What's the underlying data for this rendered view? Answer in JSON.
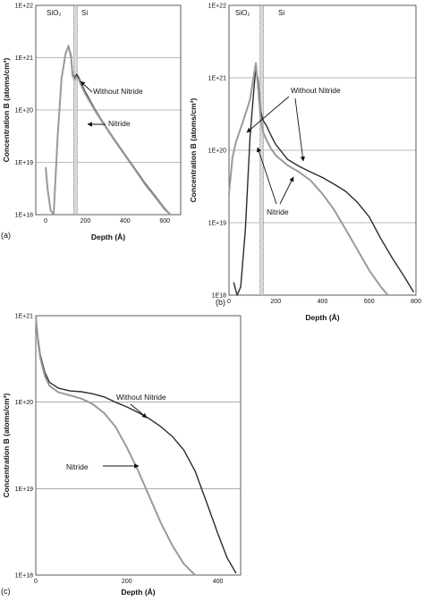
{
  "panel_labels": {
    "a": "(a)",
    "b": "(b)",
    "c": "(c)"
  },
  "colors": {
    "without_nitride": "#2b2b2b",
    "nitride": "#9a9a9a",
    "grid": "#777777",
    "frame": "#333333"
  },
  "chart_data": [
    {
      "type": "line",
      "panel": "(a)",
      "xlabel": "Depth (Å)",
      "ylabel": "Concentration B (atoms/cm³)",
      "xlim": [
        -50,
        680
      ],
      "xticks": [
        0,
        200,
        400,
        600
      ],
      "yscale": "log",
      "ylim": [
        1e+18,
        1e+22
      ],
      "yticks": [
        1e+18,
        1e+19,
        1e+20,
        1e+21,
        1e+22
      ],
      "ytick_labels": [
        "1E+18",
        "1E+19",
        "1E+20",
        "1E+21",
        "1E+22"
      ],
      "grid_y": true,
      "interface_depth": 150,
      "region_labels": [
        "SiO₂",
        "Si"
      ],
      "annotations": [
        "Without Nitride",
        "Nitride"
      ],
      "series": [
        {
          "key": "without",
          "x": [
            0,
            10,
            25,
            40,
            60,
            80,
            100,
            115,
            128,
            135,
            145,
            155,
            165,
            180,
            200,
            250,
            300,
            350,
            400,
            450,
            500,
            550,
            600,
            630
          ],
          "y": [
            8e+18,
            3e+18,
            1.2e+18,
            1e+18,
            3e+19,
            4e+20,
            1.2e+21,
            1.7e+21,
            1.1e+21,
            5e+20,
            4e+20,
            4.8e+20,
            4.3e+20,
            3.2e+20,
            2.2e+20,
            1e+20,
            5e+19,
            2.6e+19,
            1.4e+19,
            7.5e+18,
            4e+18,
            2.3e+18,
            1.3e+18,
            1e+18
          ]
        },
        {
          "key": "nitride",
          "x": [
            0,
            10,
            25,
            40,
            60,
            80,
            100,
            115,
            128,
            135,
            145,
            155,
            165,
            180,
            200,
            250,
            300,
            350,
            400,
            450,
            500,
            550,
            600,
            630
          ],
          "y": [
            8e+18,
            3e+18,
            1.2e+18,
            1e+18,
            3e+19,
            4e+20,
            1.2e+21,
            1.65e+21,
            1e+21,
            4.6e+20,
            3.8e+20,
            4.3e+20,
            3.9e+20,
            2.9e+20,
            2e+20,
            9.5e+19,
            4.8e+19,
            2.5e+19,
            1.35e+19,
            7.2e+18,
            3.8e+18,
            2.2e+18,
            1.25e+18,
            1e+18
          ]
        }
      ]
    },
    {
      "type": "line",
      "panel": "(b)",
      "xlabel": "Depth (Å)",
      "ylabel": "Concentration B (atoms/cm³)",
      "xlim": [
        0,
        800
      ],
      "xticks": [
        0,
        200,
        400,
        600,
        800
      ],
      "yscale": "log",
      "ylim": [
        1e+18,
        1e+22
      ],
      "yticks": [
        1e+18,
        1e+19,
        1e+20,
        1e+21,
        1e+22
      ],
      "ytick_labels": [
        "1E18",
        "1E+19",
        "1E+20",
        "1E+21",
        "1E+22"
      ],
      "grid_y": true,
      "interface_depth": 140,
      "region_labels": [
        "SiO₂",
        "Si"
      ],
      "annotations": [
        "Without Nitride",
        "Nitride"
      ],
      "series": [
        {
          "key": "without",
          "x": [
            20,
            35,
            50,
            70,
            90,
            105,
            115,
            125,
            135,
            145,
            160,
            180,
            200,
            250,
            300,
            350,
            400,
            450,
            500,
            550,
            600,
            650,
            700,
            750,
            790
          ],
          "y": [
            1.5e+18,
            1e+18,
            1.3e+18,
            8e+18,
            1.5e+20,
            6e+20,
            1.4e+21,
            9e+20,
            3.5e+20,
            2.6e+20,
            2.2e+20,
            1.6e+20,
            1.2e+20,
            7.5e+19,
            6e+19,
            5e+19,
            4.2e+19,
            3.4e+19,
            2.7e+19,
            1.9e+19,
            1.2e+19,
            6e+18,
            3.2e+18,
            1.8e+18,
            1.1e+18
          ]
        },
        {
          "key": "nitride",
          "x": [
            0,
            15,
            30,
            60,
            90,
            105,
            115,
            125,
            135,
            145,
            160,
            180,
            200,
            250,
            300,
            350,
            400,
            450,
            500,
            550,
            600,
            650,
            680
          ],
          "y": [
            2.5e+19,
            8e+19,
            1.3e+20,
            2.5e+20,
            5e+20,
            1e+21,
            1.6e+21,
            7e+20,
            2.8e+20,
            1.8e+20,
            1.4e+20,
            1.05e+20,
            8.5e+19,
            6.2e+19,
            5e+19,
            3.8e+19,
            2.5e+19,
            1.5e+19,
            8e+18,
            4.2e+18,
            2.2e+18,
            1.3e+18,
            1e+18
          ]
        }
      ]
    },
    {
      "type": "line",
      "panel": "(c)",
      "xlabel": "Depth (Å)",
      "ylabel": "Concentration B (atoms/cm³)",
      "xlim": [
        0,
        450
      ],
      "xticks": [
        0,
        200,
        400
      ],
      "yscale": "log",
      "ylim": [
        1e+18,
        1e+21
      ],
      "yticks": [
        1e+18,
        1e+19,
        1e+20,
        1e+21
      ],
      "ytick_labels": [
        "1E+18",
        "1E+19",
        "1E+20",
        "1E+21"
      ],
      "grid_y": true,
      "annotations": [
        "Without Nitride",
        "Nitride"
      ],
      "series": [
        {
          "key": "without",
          "x": [
            0,
            5,
            10,
            20,
            30,
            50,
            75,
            100,
            125,
            150,
            175,
            200,
            225,
            250,
            275,
            300,
            325,
            350,
            375,
            400,
            420,
            440
          ],
          "y": [
            1e+21,
            5.5e+20,
            3.5e+20,
            2.2e+20,
            1.7e+20,
            1.45e+20,
            1.35e+20,
            1.32e+20,
            1.25e+20,
            1.15e+20,
            1e+20,
            8.8e+19,
            7.6e+19,
            6.4e+19,
            5.2e+19,
            4e+19,
            2.8e+19,
            1.6e+19,
            7e+18,
            3e+18,
            1.6e+18,
            1.05e+18
          ]
        },
        {
          "key": "nitride",
          "x": [
            0,
            5,
            10,
            20,
            30,
            50,
            75,
            100,
            125,
            150,
            175,
            200,
            225,
            250,
            275,
            300,
            325,
            350
          ],
          "y": [
            1e+21,
            5e+20,
            3.2e+20,
            2e+20,
            1.55e+20,
            1.3e+20,
            1.2e+20,
            1.1e+20,
            9.5e+19,
            7.5e+19,
            5.2e+19,
            3e+19,
            1.6e+19,
            8e+18,
            4e+18,
            2.2e+18,
            1.35e+18,
            1e+18
          ]
        }
      ]
    }
  ]
}
